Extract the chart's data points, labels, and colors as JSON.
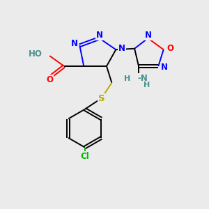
{
  "bg_color": "#ebebeb",
  "atom_colors": {
    "N": "#0000ff",
    "O": "#ff0000",
    "S": "#bbaa00",
    "Cl": "#00bb00",
    "C": "#000000",
    "H": "#4a9090"
  },
  "font_size": 8.5,
  "line_width": 1.4,
  "figsize": [
    3.0,
    3.0
  ],
  "dpi": 100
}
